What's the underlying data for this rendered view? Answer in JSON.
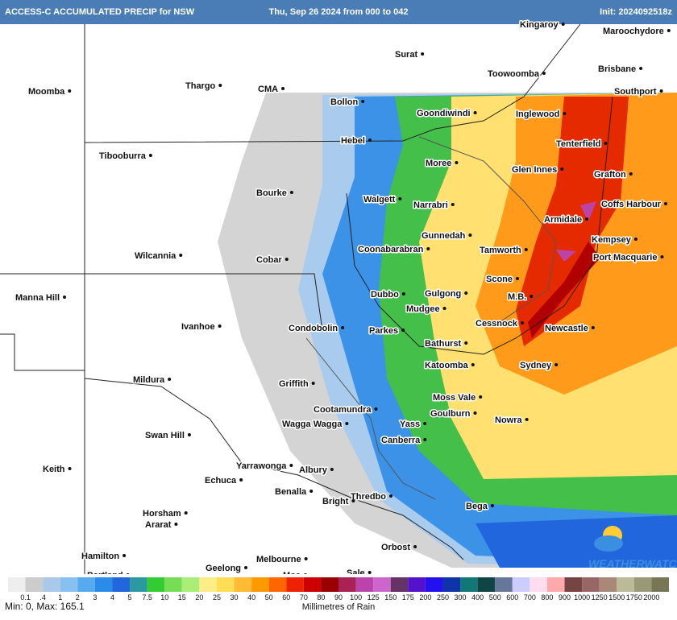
{
  "header": {
    "title": "ACCESS-C ACCUMULATED PRECIP for NSW",
    "run": "Thu, Sep 26 2024 from 000 to 042",
    "init": "Init: 2024092518z"
  },
  "places": [
    "Kingaroy",
    "Maroochydore",
    "Surat",
    "Brisbane",
    "Toowoomba",
    "Moomba",
    "Thargo",
    "CMA",
    "Southport",
    "Bollon",
    "Goondiwindi",
    "Inglewood",
    "Hebel",
    "Tenterfield",
    "Tibooburra",
    "Moree",
    "Glen Innes",
    "Grafton",
    "Bourke",
    "Walgett",
    "Narrabri",
    "Coffs Harbour",
    "Armidale",
    "Gunnedah",
    "Kempsey",
    "Coonabarabran",
    "Tamworth",
    "Wilcannia",
    "Port Macquarie",
    "Cobar",
    "Scone",
    "Manna Hill",
    "Dubbo",
    "Gulgong",
    "M.B.",
    "Mudgee",
    "Cessnock",
    "Ivanhoe",
    "Condobolin",
    "Parkes",
    "Newcastle",
    "Bathurst",
    "Katoomba",
    "Sydney",
    "Mildura",
    "Griffith",
    "Cootamundra",
    "Moss Vale",
    "Goulburn",
    "Nowra",
    "Wagga Wagga",
    "Yass",
    "Swan Hill",
    "Canberra",
    "Keith",
    "Yarrawonga",
    "Albury",
    "Echuca",
    "Benalla",
    "Thredbo",
    "Bright",
    "Bega",
    "Horsham",
    "Ararat",
    "Hamilton",
    "Orbost",
    "Melbourne",
    "Geelong",
    "Portland",
    "Sale",
    "Moe"
  ],
  "legend": {
    "labels": [
      "0.1",
      ".4",
      "1",
      "2",
      "3",
      "4",
      "5",
      "7.5",
      "10",
      "15",
      "20",
      "25",
      "30",
      "40",
      "50",
      "60",
      "70",
      "80",
      "90",
      "100",
      "125",
      "150",
      "175",
      "200",
      "250",
      "300",
      "400",
      "500",
      "600",
      "700",
      "800",
      "900",
      "1000",
      "1250",
      "1500",
      "1750",
      "2000"
    ],
    "colors": [
      "#eeeeee",
      "#cccccc",
      "#aac8e8",
      "#88c0f0",
      "#55aaf0",
      "#2a8ce8",
      "#2266dd",
      "#2a9aa0",
      "#33cc33",
      "#77dd55",
      "#aaee77",
      "#ffee88",
      "#ffdd55",
      "#ffbb33",
      "#ff9900",
      "#ff6600",
      "#ee2200",
      "#cc0000",
      "#990000",
      "#aa2255",
      "#bb44aa",
      "#cc66cc",
      "#663366",
      "#5511cc",
      "#2211ee",
      "#1133aa",
      "#117777",
      "#114444",
      "#667799",
      "#ccccff",
      "#ffddee",
      "#ffaaaa",
      "#774444",
      "#996666",
      "#aa8877",
      "#bbbb99",
      "#999977",
      "#777755"
    ],
    "range": "Min: 0, Max: 165.1",
    "units": "Millimetres of Rain"
  },
  "brand": "WEATHERWATCH"
}
